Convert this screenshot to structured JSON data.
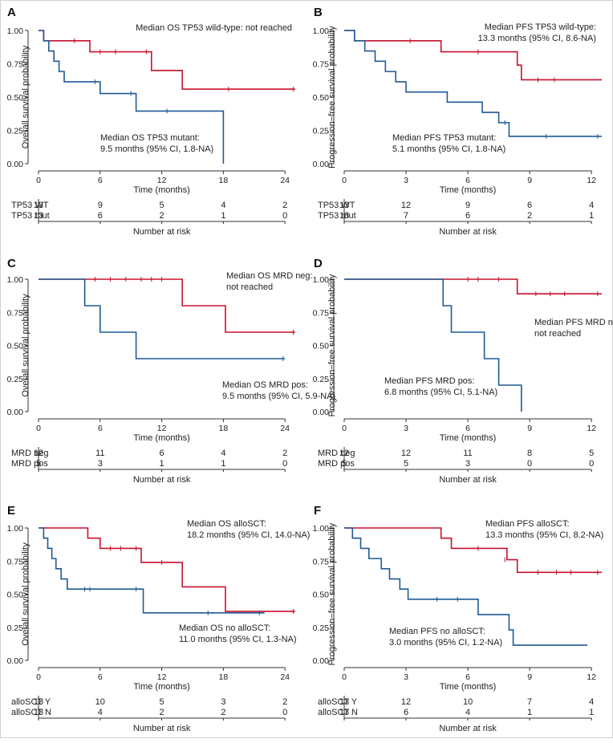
{
  "colors": {
    "red": "#c8102e",
    "blue": "#1f5a96",
    "axis": "#333333"
  },
  "figure": {
    "rows_label": "Number at risk"
  },
  "chart_data": [
    {
      "id": "A",
      "type": "line",
      "subtype": "kaplan-meier",
      "ylabel": "Overall survival probability",
      "xlabel": "Time (months)",
      "xlim": [
        0,
        25
      ],
      "ylim": [
        0,
        1
      ],
      "xticks": [
        0,
        6,
        12,
        18,
        24
      ],
      "yticks": [
        "0.00",
        "0.25",
        "0.50",
        "0.75",
        "1.00"
      ],
      "annotations": [
        {
          "lines": [
            "Median OS TP53 wild-type: not reached"
          ]
        },
        {
          "lines": [
            "Median OS TP53 mutant:",
            "9.5 months (95% CI, 1.8-NA)"
          ]
        }
      ],
      "series": [
        {
          "name": "TP53 WT",
          "color": "red",
          "steps": [
            [
              0,
              1
            ],
            [
              0.5,
              0.923
            ],
            [
              5,
              0.84
            ],
            [
              11,
              0.7
            ],
            [
              14,
              0.56
            ],
            [
              25,
              0.56
            ]
          ],
          "censor": [
            [
              3.5,
              0.923
            ],
            [
              6,
              0.84
            ],
            [
              7.5,
              0.84
            ],
            [
              10.5,
              0.84
            ],
            [
              18.5,
              0.56
            ],
            [
              24.8,
              0.56
            ]
          ]
        },
        {
          "name": "TP53 mut",
          "color": "blue",
          "steps": [
            [
              0,
              1
            ],
            [
              0.5,
              0.923
            ],
            [
              1,
              0.846
            ],
            [
              1.5,
              0.769
            ],
            [
              2,
              0.692
            ],
            [
              2.5,
              0.615
            ],
            [
              6,
              0.527
            ],
            [
              9.5,
              0.395
            ],
            [
              18,
              0.395
            ],
            [
              18,
              0
            ]
          ],
          "censor": [
            [
              5.5,
              0.615
            ],
            [
              9,
              0.527
            ],
            [
              12.5,
              0.395
            ]
          ]
        }
      ],
      "risk_table": {
        "times": [
          0,
          6,
          12,
          18,
          24
        ],
        "rows": [
          {
            "label": "TP53 WT",
            "color": "red",
            "values": [
              13,
              9,
              5,
              4,
              2
            ]
          },
          {
            "label": "TP53 mut",
            "color": "blue",
            "values": [
              13,
              6,
              2,
              1,
              0
            ]
          }
        ]
      }
    },
    {
      "id": "B",
      "type": "line",
      "subtype": "kaplan-meier",
      "ylabel": "Progression−free survival probability",
      "xlabel": "Time (months)",
      "xlim": [
        0,
        12.5
      ],
      "ylim": [
        0,
        1
      ],
      "xticks": [
        0,
        3,
        6,
        9,
        12
      ],
      "yticks": [
        "0.00",
        "0.25",
        "0.50",
        "0.75",
        "1.00"
      ],
      "annotations": [
        {
          "lines": [
            "Median PFS TP53 wild-type:",
            "13.3 months (95% CI, 8.6-NA)"
          ]
        },
        {
          "lines": [
            "Median PFS TP53 mutant:",
            "5.1 months (95% CI, 1.8-NA)"
          ]
        }
      ],
      "series": [
        {
          "name": "TP53 WT",
          "color": "red",
          "steps": [
            [
              0,
              1
            ],
            [
              0.5,
              0.923
            ],
            [
              4.7,
              0.84
            ],
            [
              8.4,
              0.74
            ],
            [
              8.6,
              0.63
            ],
            [
              12.5,
              0.63
            ]
          ],
          "censor": [
            [
              3.2,
              0.923
            ],
            [
              6.5,
              0.84
            ],
            [
              8.4,
              0.79
            ],
            [
              9.4,
              0.63
            ],
            [
              10.2,
              0.63
            ]
          ]
        },
        {
          "name": "TP53 mut",
          "color": "blue",
          "steps": [
            [
              0,
              1
            ],
            [
              0.5,
              0.923
            ],
            [
              1,
              0.846
            ],
            [
              1.5,
              0.769
            ],
            [
              2,
              0.692
            ],
            [
              2.5,
              0.615
            ],
            [
              3,
              0.538
            ],
            [
              5,
              0.462
            ],
            [
              6.7,
              0.385
            ],
            [
              7.5,
              0.308
            ],
            [
              8,
              0.205
            ],
            [
              12.5,
              0.205
            ]
          ],
          "censor": [
            [
              7.8,
              0.308
            ],
            [
              9.8,
              0.205
            ],
            [
              12.3,
              0.205
            ]
          ]
        }
      ],
      "risk_table": {
        "times": [
          0,
          3,
          6,
          9,
          12
        ],
        "rows": [
          {
            "label": "TP53 WT",
            "color": "red",
            "values": [
              13,
              12,
              9,
              6,
              4
            ]
          },
          {
            "label": "TP53 mut",
            "color": "blue",
            "values": [
              13,
              7,
              6,
              2,
              1
            ]
          }
        ]
      }
    },
    {
      "id": "C",
      "type": "line",
      "subtype": "kaplan-meier",
      "ylabel": "Overall survival probability",
      "xlabel": "Time (months)",
      "xlim": [
        0,
        25
      ],
      "ylim": [
        0,
        1
      ],
      "xticks": [
        0,
        6,
        12,
        18,
        24
      ],
      "yticks": [
        "0.00",
        "0.25",
        "0.50",
        "0.75",
        "1.00"
      ],
      "annotations": [
        {
          "lines": [
            "Median OS MRD neg:",
            "not reached"
          ]
        },
        {
          "lines": [
            "Median OS MRD pos:",
            "9.5 months (95% CI, 5.9-NA)"
          ]
        }
      ],
      "series": [
        {
          "name": "MRD neg",
          "color": "red",
          "steps": [
            [
              0,
              1
            ],
            [
              14,
              0.8
            ],
            [
              18.2,
              0.6
            ],
            [
              25,
              0.6
            ]
          ],
          "censor": [
            [
              5.5,
              1
            ],
            [
              7,
              1
            ],
            [
              8.5,
              1
            ],
            [
              10,
              1
            ],
            [
              11,
              1
            ],
            [
              12,
              1
            ],
            [
              24.8,
              0.6
            ]
          ]
        },
        {
          "name": "MRD pos",
          "color": "blue",
          "steps": [
            [
              0,
              1
            ],
            [
              4.5,
              0.8
            ],
            [
              6,
              0.6
            ],
            [
              9.5,
              0.4
            ],
            [
              24,
              0.4
            ]
          ],
          "censor": [
            [
              23.8,
              0.4
            ]
          ]
        }
      ],
      "risk_table": {
        "times": [
          0,
          6,
          12,
          18,
          24
        ],
        "rows": [
          {
            "label": "MRD neg",
            "color": "red",
            "values": [
              12,
              11,
              6,
              4,
              2
            ]
          },
          {
            "label": "MRD pos",
            "color": "blue",
            "values": [
              5,
              3,
              1,
              1,
              0
            ]
          }
        ]
      }
    },
    {
      "id": "D",
      "type": "line",
      "subtype": "kaplan-meier",
      "ylabel": "Progression−free survival probability",
      "xlabel": "Time (months)",
      "xlim": [
        0,
        12.5
      ],
      "ylim": [
        0,
        1
      ],
      "xticks": [
        0,
        3,
        6,
        9,
        12
      ],
      "yticks": [
        "0.00",
        "0.25",
        "0.50",
        "0.75",
        "1.00"
      ],
      "annotations": [
        {
          "lines": [
            "Median PFS MRD neg:",
            "not reached"
          ]
        },
        {
          "lines": [
            "Median PFS MRD pos:",
            "6.8 months (95% CI, 5.1-NA)"
          ]
        }
      ],
      "series": [
        {
          "name": "MRD neg",
          "color": "red",
          "steps": [
            [
              0,
              1
            ],
            [
              8.4,
              0.89
            ],
            [
              12.5,
              0.89
            ]
          ],
          "censor": [
            [
              6,
              1
            ],
            [
              6.5,
              1
            ],
            [
              7.5,
              1
            ],
            [
              9.3,
              0.89
            ],
            [
              10,
              0.89
            ],
            [
              10.7,
              0.89
            ],
            [
              12.3,
              0.89
            ]
          ]
        },
        {
          "name": "MRD pos",
          "color": "blue",
          "steps": [
            [
              0,
              1
            ],
            [
              4.8,
              0.8
            ],
            [
              5.2,
              0.6
            ],
            [
              6.8,
              0.4
            ],
            [
              7.5,
              0.2
            ],
            [
              8.6,
              0.2
            ],
            [
              8.6,
              0
            ]
          ],
          "censor": []
        }
      ],
      "risk_table": {
        "times": [
          0,
          3,
          6,
          9,
          12
        ],
        "rows": [
          {
            "label": "MRD neg",
            "color": "red",
            "values": [
              12,
              12,
              11,
              8,
              5
            ]
          },
          {
            "label": "MRD pos",
            "color": "blue",
            "values": [
              5,
              5,
              3,
              0,
              0
            ]
          }
        ]
      }
    },
    {
      "id": "E",
      "type": "line",
      "subtype": "kaplan-meier",
      "ylabel": "Overall survival probability",
      "xlabel": "Time (months)",
      "xlim": [
        0,
        25
      ],
      "ylim": [
        0,
        1
      ],
      "xticks": [
        0,
        6,
        12,
        18,
        24
      ],
      "yticks": [
        "0.00",
        "0.25",
        "0.50",
        "0.75",
        "1.00"
      ],
      "annotations": [
        {
          "lines": [
            "Median OS alloSCT:",
            "18.2 months (95% CI, 14.0-NA)"
          ]
        },
        {
          "lines": [
            "Median OS no alloSCT:",
            "11.0 months (95% CI, 1.3-NA)"
          ]
        }
      ],
      "series": [
        {
          "name": "alloSCT Y",
          "color": "red",
          "steps": [
            [
              0,
              1
            ],
            [
              4.8,
              0.923
            ],
            [
              6,
              0.846
            ],
            [
              10,
              0.74
            ],
            [
              14,
              0.555
            ],
            [
              18.2,
              0.37
            ],
            [
              25,
              0.37
            ]
          ],
          "censor": [
            [
              7,
              0.846
            ],
            [
              8,
              0.846
            ],
            [
              9.5,
              0.846
            ],
            [
              12,
              0.74
            ],
            [
              24.8,
              0.37
            ]
          ]
        },
        {
          "name": "alloSCT N",
          "color": "blue",
          "steps": [
            [
              0,
              1
            ],
            [
              0.5,
              0.923
            ],
            [
              0.9,
              0.846
            ],
            [
              1.3,
              0.769
            ],
            [
              1.7,
              0.692
            ],
            [
              2.2,
              0.615
            ],
            [
              2.8,
              0.538
            ],
            [
              10.2,
              0.359
            ],
            [
              22,
              0.359
            ]
          ],
          "censor": [
            [
              4.5,
              0.538
            ],
            [
              5,
              0.538
            ],
            [
              9.5,
              0.538
            ],
            [
              16.5,
              0.359
            ],
            [
              21.5,
              0.359
            ]
          ]
        }
      ],
      "risk_table": {
        "times": [
          0,
          6,
          12,
          18,
          24
        ],
        "rows": [
          {
            "label": "alloSCT Y",
            "color": "red",
            "values": [
              13,
              10,
              5,
              3,
              2
            ]
          },
          {
            "label": "alloSCT N",
            "color": "blue",
            "values": [
              13,
              4,
              2,
              2,
              0
            ]
          }
        ]
      }
    },
    {
      "id": "F",
      "type": "line",
      "subtype": "kaplan-meier",
      "ylabel": "Progression−free survival probability",
      "xlabel": "Time (months)",
      "xlim": [
        0,
        12.5
      ],
      "ylim": [
        0,
        1
      ],
      "xticks": [
        0,
        3,
        6,
        9,
        12
      ],
      "yticks": [
        "0.00",
        "0.25",
        "0.50",
        "0.75",
        "1.00"
      ],
      "annotations": [
        {
          "lines": [
            "Median PFS alloSCT:",
            "13.3 months (95% CI, 8.2-NA)"
          ]
        },
        {
          "lines": [
            "Median PFS no alloSCT:",
            "3.0 months (95% CI, 1.2-NA)"
          ]
        }
      ],
      "series": [
        {
          "name": "alloSCT Y",
          "color": "red",
          "steps": [
            [
              0,
              1
            ],
            [
              4.7,
              0.923
            ],
            [
              5.2,
              0.846
            ],
            [
              7.9,
              0.76
            ],
            [
              8.4,
              0.665
            ],
            [
              12.5,
              0.665
            ]
          ],
          "censor": [
            [
              6.5,
              0.846
            ],
            [
              7.8,
              0.76
            ],
            [
              9.4,
              0.665
            ],
            [
              10.3,
              0.665
            ],
            [
              11,
              0.665
            ],
            [
              12.3,
              0.665
            ]
          ]
        },
        {
          "name": "alloSCT N",
          "color": "blue",
          "steps": [
            [
              0,
              1
            ],
            [
              0.4,
              0.923
            ],
            [
              0.8,
              0.846
            ],
            [
              1.2,
              0.769
            ],
            [
              1.8,
              0.692
            ],
            [
              2.2,
              0.615
            ],
            [
              2.7,
              0.538
            ],
            [
              3.1,
              0.462
            ],
            [
              6.5,
              0.346
            ],
            [
              8,
              0.23
            ],
            [
              8.2,
              0.115
            ],
            [
              11.8,
              0.115
            ]
          ],
          "censor": [
            [
              4.5,
              0.462
            ],
            [
              5.5,
              0.462
            ]
          ]
        }
      ],
      "risk_table": {
        "times": [
          0,
          3,
          6,
          9,
          12
        ],
        "rows": [
          {
            "label": "alloSCT Y",
            "color": "red",
            "values": [
              13,
              12,
              10,
              7,
              4
            ]
          },
          {
            "label": "alloSCT N",
            "color": "blue",
            "values": [
              13,
              6,
              4,
              1,
              1
            ]
          }
        ]
      }
    }
  ]
}
